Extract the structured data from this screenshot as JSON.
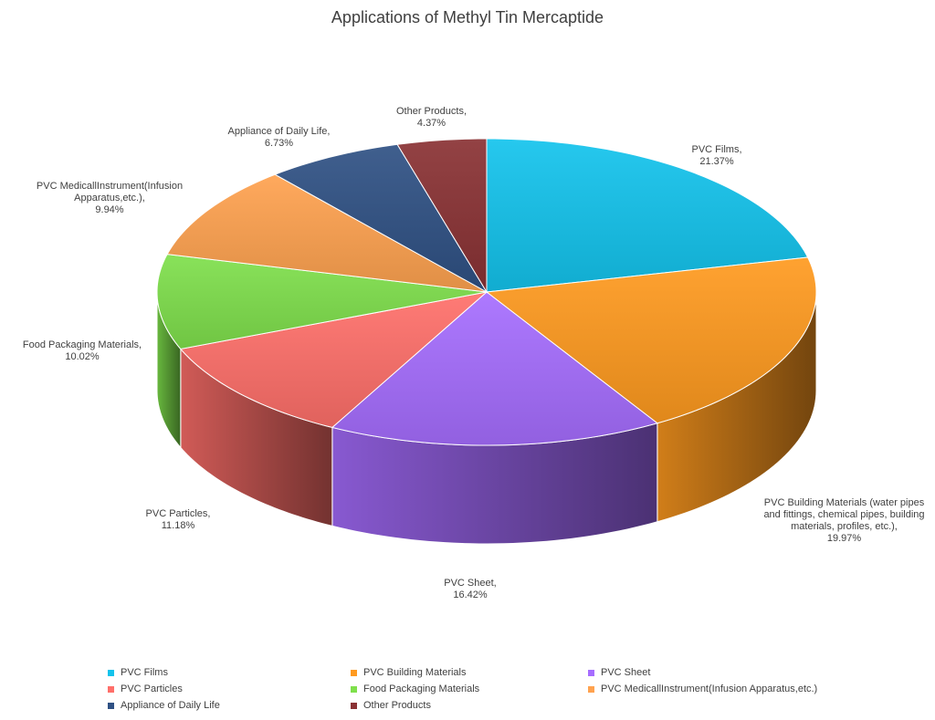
{
  "chart_data": {
    "type": "pie",
    "title": "Applications of Methyl Tin Mercaptide",
    "style": "3d-exploded-free pie with depth",
    "slices": [
      {
        "name": "PVC Films",
        "value": 21.37,
        "label_name": "PVC Films,",
        "label_pct": "21.37%",
        "color": "#13c3ec",
        "legend": "PVC Films"
      },
      {
        "name": "PVC Building Materials",
        "value": 19.97,
        "label_name": "PVC Building Materials  (water pipes\nand fittings, chemical pipes, building\nmaterials, profiles, etc.),",
        "label_pct": "19.97%",
        "color": "#ff9a1f",
        "legend": "PVC Building Materials"
      },
      {
        "name": "PVC Sheet",
        "value": 16.42,
        "label_name": "PVC Sheet,",
        "label_pct": "16.42%",
        "color": "#a66dff",
        "legend": "PVC Sheet"
      },
      {
        "name": "PVC Particles",
        "value": 11.18,
        "label_name": "PVC Particles,",
        "label_pct": "11.18%",
        "color": "#ff6f6a",
        "legend": "PVC Particles"
      },
      {
        "name": "Food Packaging Materials",
        "value": 10.02,
        "label_name": "Food Packaging Materials,",
        "label_pct": "10.02%",
        "color": "#7fe04c",
        "legend": "Food Packaging Materials"
      },
      {
        "name": "PVC MedicallInstrument(Infusion Apparatus,etc.)",
        "value": 9.94,
        "label_name": "PVC MedicallInstrument(Infusion\nApparatus,etc.),",
        "label_pct": "9.94%",
        "color": "#ffa24f",
        "legend": "PVC MedicallInstrument(Infusion Apparatus,etc.)"
      },
      {
        "name": "Appliance of Daily Life",
        "value": 6.73,
        "label_name": "Appliance of Daily Life,",
        "label_pct": "6.73%",
        "color": "#2f5184",
        "legend": "Appliance of Daily Life"
      },
      {
        "name": "Other Products",
        "value": 4.37,
        "label_name": "Other Products,",
        "label_pct": "4.37%",
        "color": "#8a3234",
        "legend": "Other Products"
      }
    ],
    "legend_placement": "bottom"
  }
}
